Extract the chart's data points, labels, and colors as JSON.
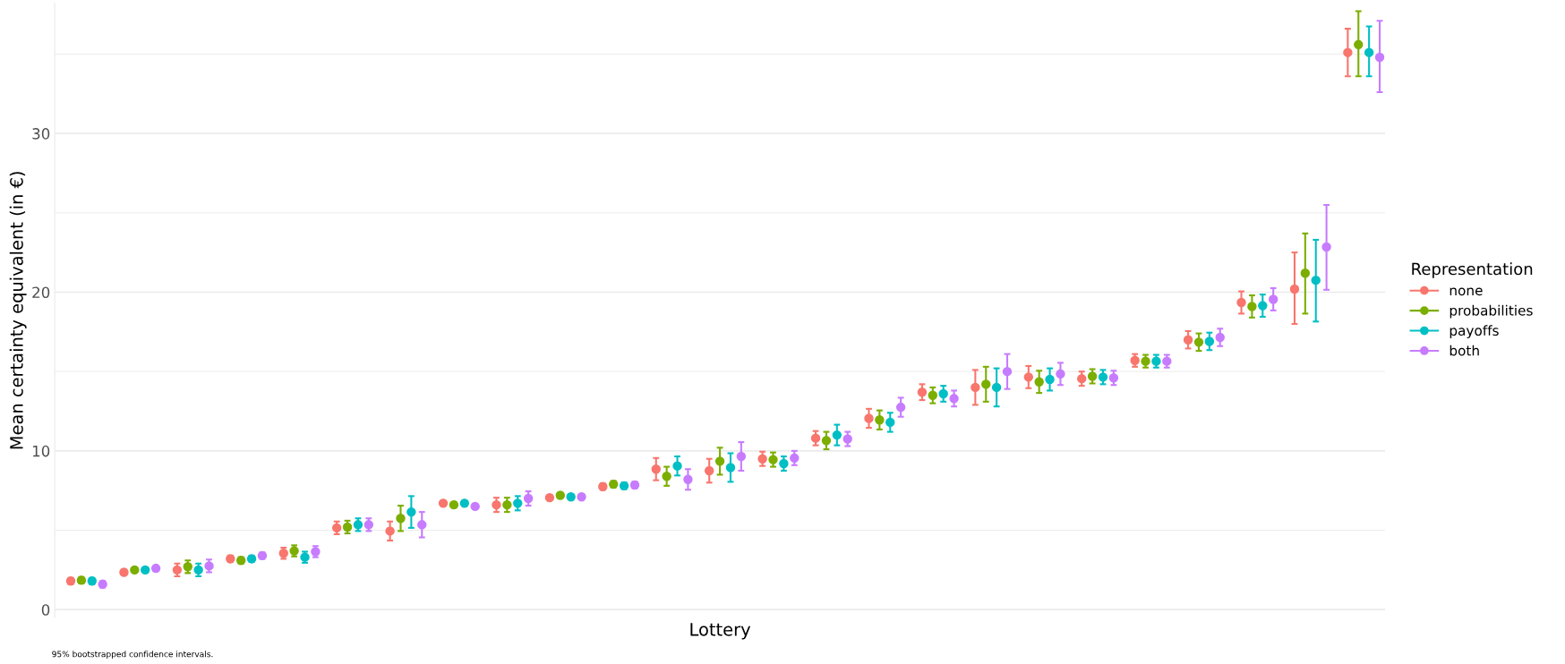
{
  "chart_data": {
    "type": "scatter",
    "xlabel": "Lottery",
    "ylabel": "Mean certainty equivalent (in €)",
    "legend_title": "Representation",
    "legend": "right",
    "marker": "circle",
    "grid": "y",
    "categories": [
      null,
      null,
      null,
      null,
      null,
      null,
      null,
      null,
      null,
      null,
      null,
      null,
      null,
      null,
      null,
      null,
      null,
      null,
      null,
      null,
      null,
      null,
      null,
      null,
      null
    ],
    "ylim": [
      -0.5,
      38.2
    ],
    "yticks": [
      0,
      {
        "value": 5,
        "label": null
      },
      10,
      {
        "value": 15,
        "label": null
      },
      20,
      {
        "value": 25,
        "label": null
      },
      30,
      {
        "value": 35,
        "label": null
      }
    ],
    "tick_labels": "y",
    "series": [
      {
        "name": "none",
        "color": "#f8766d",
        "values": [
          1.8,
          2.35,
          2.5,
          3.2,
          3.55,
          5.15,
          4.95,
          6.7,
          6.6,
          7.05,
          7.75,
          8.85,
          8.75,
          9.5,
          10.8,
          12.05,
          13.7,
          14.0,
          14.65,
          14.55,
          15.7,
          17.0,
          19.35,
          20.2,
          35.1
        ],
        "errors": [
          0.2,
          0.15,
          0.4,
          0.2,
          0.35,
          0.4,
          0.6,
          0.15,
          0.45,
          0.15,
          0.2,
          0.7,
          0.75,
          0.45,
          0.45,
          0.6,
          0.5,
          1.1,
          0.7,
          0.45,
          0.4,
          0.55,
          0.7,
          [
            18.0,
            22.5
          ],
          [
            33.6,
            36.6
          ]
        ]
      },
      {
        "name": "probabilities",
        "color": "#7cae00",
        "values": [
          1.85,
          2.5,
          2.7,
          3.1,
          3.7,
          5.2,
          5.75,
          6.6,
          6.6,
          7.2,
          7.9,
          8.4,
          9.35,
          9.45,
          10.65,
          11.95,
          13.5,
          14.2,
          14.35,
          14.7,
          15.65,
          16.85,
          19.1,
          21.2,
          35.6
        ],
        "errors": [
          0.2,
          0.15,
          0.4,
          0.2,
          0.35,
          0.4,
          0.8,
          0.15,
          0.45,
          0.15,
          0.2,
          0.6,
          0.85,
          0.45,
          0.55,
          0.6,
          0.5,
          1.1,
          0.7,
          0.45,
          0.4,
          0.55,
          0.7,
          [
            18.65,
            23.7
          ],
          [
            33.6,
            37.7
          ]
        ]
      },
      {
        "name": "payoffs",
        "color": "#00bfc4",
        "values": [
          1.8,
          2.5,
          2.5,
          3.2,
          3.3,
          5.35,
          6.15,
          6.7,
          6.7,
          7.1,
          7.8,
          9.05,
          8.95,
          9.2,
          11.0,
          11.8,
          13.6,
          14.0,
          14.5,
          14.65,
          15.65,
          16.9,
          19.15,
          20.75,
          35.1
        ],
        "errors": [
          0.2,
          0.15,
          0.4,
          0.2,
          0.35,
          0.4,
          1.0,
          0.15,
          0.45,
          0.15,
          0.2,
          0.6,
          0.9,
          0.45,
          0.65,
          0.6,
          0.5,
          1.2,
          0.7,
          0.45,
          0.4,
          0.55,
          0.7,
          [
            18.15,
            23.3
          ],
          [
            33.6,
            36.75
          ]
        ]
      },
      {
        "name": "both",
        "color": "#c77cff",
        "values": [
          1.6,
          2.6,
          2.75,
          3.4,
          3.65,
          5.35,
          5.35,
          6.5,
          7.0,
          7.1,
          7.85,
          8.2,
          9.65,
          9.55,
          10.75,
          12.75,
          13.3,
          15.0,
          14.85,
          14.6,
          15.65,
          17.15,
          19.55,
          22.85,
          34.8
        ],
        "errors": [
          0.2,
          0.15,
          0.4,
          0.2,
          0.35,
          0.4,
          0.8,
          0.15,
          0.45,
          0.15,
          0.2,
          0.65,
          0.9,
          0.45,
          0.45,
          0.6,
          0.5,
          1.1,
          0.7,
          0.45,
          0.4,
          0.55,
          0.7,
          [
            20.15,
            25.5
          ],
          [
            32.6,
            37.1
          ]
        ]
      }
    ],
    "annotations": [
      "95% bootstrapped confidence intervals."
    ]
  }
}
